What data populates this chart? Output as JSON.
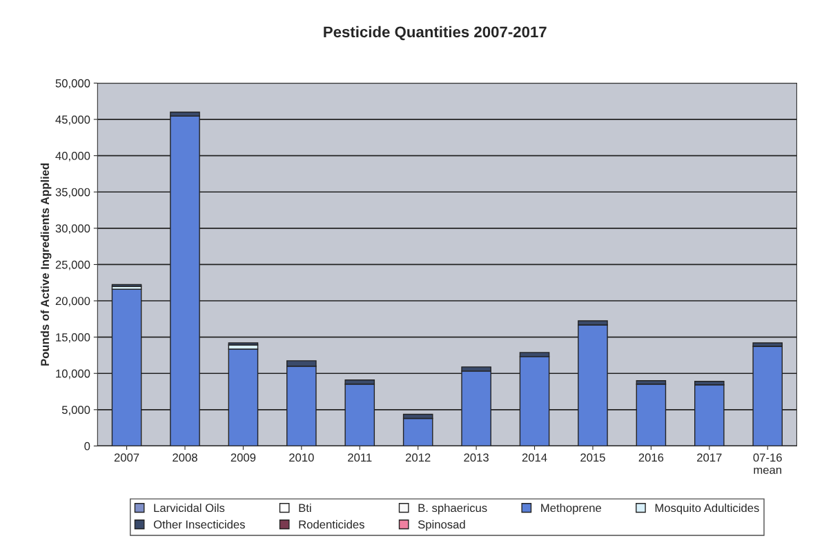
{
  "chart_data": {
    "type": "bar",
    "title": "Pesticide Quantities 2007-2017",
    "ylabel": "Pounds of Active Ingredients Applied",
    "categories": [
      "2007",
      "2008",
      "2009",
      "2010",
      "2011",
      "2012",
      "2013",
      "2014",
      "2015",
      "2016",
      "2017",
      "07-16\nmean"
    ],
    "stacked": true,
    "ylim": [
      0,
      50000
    ],
    "yticks": [
      {
        "value": 0,
        "label": "0"
      },
      {
        "value": 5000,
        "label": "5,000"
      },
      {
        "value": 10000,
        "label": "10,000"
      },
      {
        "value": 15000,
        "label": "15,000"
      },
      {
        "value": 20000,
        "label": "20,000"
      },
      {
        "value": 25000,
        "label": "25,000"
      },
      {
        "value": 30000,
        "label": "30,000"
      },
      {
        "value": 35000,
        "label": "35,000"
      },
      {
        "value": 40000,
        "label": "40,000"
      },
      {
        "value": 45000,
        "label": "45,000"
      },
      {
        "value": 50000,
        "label": "50,000"
      }
    ],
    "grid": "y",
    "legend": "bottom",
    "series": [
      {
        "name": "Larvicidal Oils",
        "color": "#8090c8",
        "values": [
          0,
          0,
          0,
          0,
          0,
          0,
          0,
          0,
          0,
          0,
          0,
          0
        ]
      },
      {
        "color": "#e0204a",
        "values": [
          0,
          0,
          0,
          0,
          0,
          0,
          0,
          0,
          0,
          0,
          0,
          0
        ]
      },
      {
        "name": "Bti",
        "color": "#ffffff",
        "values": [
          0,
          0,
          0,
          0,
          0,
          0,
          0,
          0,
          0,
          0,
          0,
          0
        ]
      },
      {
        "name": "B. sphaericus",
        "color": "#fafafa",
        "values": [
          0,
          0,
          0,
          0,
          0,
          0,
          0,
          0,
          0,
          0,
          0,
          0
        ]
      },
      {
        "name": "Methoprene",
        "color": "#5b80d8",
        "values": [
          21600,
          45450,
          13350,
          11000,
          8520,
          3790,
          10320,
          12310,
          16670,
          8520,
          8430,
          13730
        ]
      },
      {
        "name": "Mosquito Adulticides",
        "color": "#d8f0fa",
        "values": [
          400,
          0,
          570,
          0,
          0,
          0,
          0,
          0,
          0,
          0,
          0,
          0
        ]
      },
      {
        "name": "Other Insecticides",
        "color": "#3a4a6a",
        "values": [
          250,
          550,
          280,
          740,
          570,
          570,
          570,
          570,
          570,
          480,
          470,
          470
        ]
      },
      {
        "name": "Rodenticides",
        "color": "#7a3a50",
        "values": [
          0,
          0,
          0,
          0,
          0,
          0,
          0,
          0,
          0,
          0,
          0,
          0
        ]
      },
      {
        "name": "Spinosad",
        "color": "#f080a0",
        "values": [
          0,
          0,
          0,
          0,
          0,
          0,
          0,
          0,
          0,
          0,
          0,
          0
        ]
      }
    ]
  }
}
